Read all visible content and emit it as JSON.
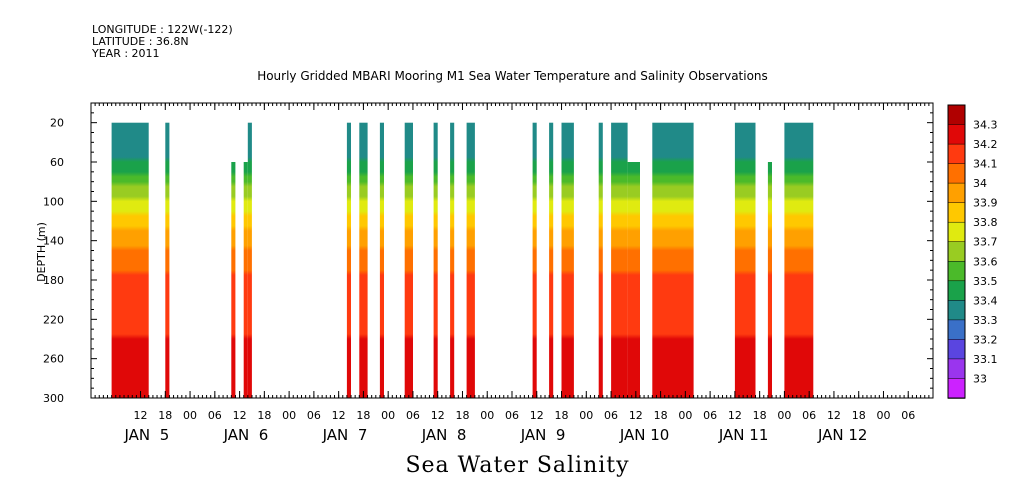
{
  "meta": {
    "longitude": "LONGITUDE : 122W(-122)",
    "latitude": "LATITUDE : 36.8N",
    "year": "YEAR : 2011"
  },
  "chart_data": {
    "type": "heatmap",
    "title": "Hourly Gridded MBARI Mooring M1 Sea Water Temperature and Salinity Observations",
    "subtitle": "Sea Water Salinity",
    "ylabel": "DEPTH (m)",
    "y_reversed": true,
    "ylim": [
      300,
      0
    ],
    "y_ticks": [
      20,
      60,
      100,
      140,
      180,
      220,
      260,
      300
    ],
    "x_unit": "hours since JAN 5 00:00",
    "xlim": [
      6,
      180
    ],
    "x_hour_tick_labels": [
      "12",
      "18",
      "00",
      "06",
      "12",
      "18",
      "00",
      "06",
      "12",
      "18",
      "00",
      "06",
      "12",
      "18",
      "00",
      "06",
      "12",
      "18",
      "00",
      "06",
      "12",
      "18",
      "00",
      "06",
      "12",
      "18",
      "00",
      "06",
      "12",
      "18",
      "00",
      "06"
    ],
    "x_hour_tick_values": [
      -12,
      -6,
      0,
      6,
      12,
      18,
      24,
      30,
      36,
      42,
      48,
      54,
      60,
      66,
      72,
      78,
      84,
      90,
      96,
      102,
      108,
      114,
      120,
      126,
      132,
      138,
      144,
      150,
      156,
      162,
      168,
      174
    ],
    "x_day_labels": [
      "JAN  5",
      "JAN  6",
      "JAN  7",
      "JAN  8",
      "JAN  9",
      "JAN 10",
      "JAN 11",
      "JAN 12"
    ],
    "x_day_label_values": [
      -12,
      12,
      36,
      60,
      84,
      108,
      132,
      156
    ],
    "colorbar": {
      "levels": [
        33.0,
        33.1,
        33.2,
        33.3,
        33.4,
        33.5,
        33.6,
        33.7,
        33.8,
        33.9,
        34.0,
        34.1,
        34.2,
        34.3
      ],
      "tick_labels": [
        "33",
        "33.1",
        "33.2",
        "33.3",
        "33.4",
        "33.5",
        "33.6",
        "33.7",
        "33.8",
        "33.9",
        "34",
        "34.1",
        "34.2",
        "34.3"
      ],
      "colors": [
        "#cc22ff",
        "#9a35ee",
        "#5a45e0",
        "#3a70c8",
        "#208a88",
        "#1aa24a",
        "#4bba2a",
        "#99cc22",
        "#e0ea10",
        "#ffc800",
        "#ffa000",
        "#ff7000",
        "#ff3a10",
        "#e00808",
        "#b00000"
      ]
    },
    "profile": {
      "depth": [
        20,
        60,
        100,
        130,
        160,
        200,
        240,
        280,
        300
      ],
      "salinity": [
        33.32,
        33.4,
        33.72,
        33.9,
        34.08,
        34.14,
        34.2,
        34.28,
        34.28
      ]
    },
    "data_segments": [
      {
        "start": -19,
        "end": -10,
        "top_depth": 20,
        "bottom_depth": 300
      },
      {
        "start": -6,
        "end": -5,
        "top_depth": 20,
        "bottom_depth": 300
      },
      {
        "start": 10,
        "end": 11,
        "top_depth": 60,
        "bottom_depth": 300
      },
      {
        "start": 13,
        "end": 14,
        "top_depth": 60,
        "bottom_depth": 300
      },
      {
        "start": 14,
        "end": 15,
        "top_depth": 20,
        "bottom_depth": 300
      },
      {
        "start": 38,
        "end": 39,
        "top_depth": 20,
        "bottom_depth": 300
      },
      {
        "start": 41,
        "end": 43,
        "top_depth": 20,
        "bottom_depth": 300
      },
      {
        "start": 46,
        "end": 47,
        "top_depth": 20,
        "bottom_depth": 300
      },
      {
        "start": 52,
        "end": 54,
        "top_depth": 20,
        "bottom_depth": 300
      },
      {
        "start": 59,
        "end": 60,
        "top_depth": 20,
        "bottom_depth": 300
      },
      {
        "start": 63,
        "end": 64,
        "top_depth": 20,
        "bottom_depth": 300
      },
      {
        "start": 67,
        "end": 69,
        "top_depth": 20,
        "bottom_depth": 300
      },
      {
        "start": 83,
        "end": 84,
        "top_depth": 20,
        "bottom_depth": 300
      },
      {
        "start": 87,
        "end": 88,
        "top_depth": 20,
        "bottom_depth": 300
      },
      {
        "start": 90,
        "end": 93,
        "top_depth": 20,
        "bottom_depth": 300
      },
      {
        "start": 99,
        "end": 100,
        "top_depth": 20,
        "bottom_depth": 300
      },
      {
        "start": 102,
        "end": 106,
        "top_depth": 20,
        "bottom_depth": 300
      },
      {
        "start": 106,
        "end": 109,
        "top_depth": 60,
        "bottom_depth": 300
      },
      {
        "start": 112,
        "end": 122,
        "top_depth": 20,
        "bottom_depth": 300
      },
      {
        "start": 132,
        "end": 137,
        "top_depth": 20,
        "bottom_depth": 300
      },
      {
        "start": 140,
        "end": 141,
        "top_depth": 60,
        "bottom_depth": 300
      },
      {
        "start": 144,
        "end": 151,
        "top_depth": 20,
        "bottom_depth": 300
      }
    ]
  }
}
